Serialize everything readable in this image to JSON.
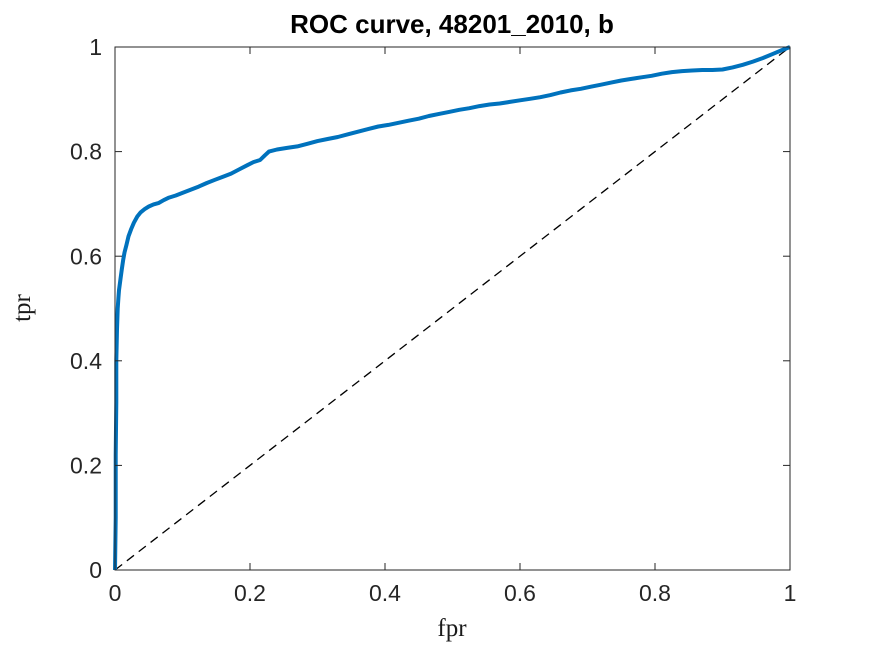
{
  "chart_data": {
    "type": "line",
    "title": "ROC curve, 48201_2010, b",
    "xlabel": "fpr",
    "ylabel": "tpr",
    "xlim": [
      0,
      1
    ],
    "ylim": [
      0,
      1
    ],
    "xticks": [
      0,
      0.2,
      0.4,
      0.6,
      0.8,
      1
    ],
    "yticks": [
      0,
      0.2,
      0.4,
      0.6,
      0.8,
      1
    ],
    "xtick_labels": [
      "0",
      "0.2",
      "0.4",
      "0.6",
      "0.8",
      "1"
    ],
    "ytick_labels": [
      "0",
      "0.2",
      "0.4",
      "0.6",
      "0.8",
      "1"
    ],
    "grid": false,
    "legend": null,
    "axis_color": "#262626",
    "background": "#ffffff",
    "series": [
      {
        "name": "chance-diagonal",
        "type": "reference-line",
        "color": "#000000",
        "width": 1.3,
        "dash": "9,6",
        "points": [
          [
            0,
            0
          ],
          [
            1,
            1
          ]
        ]
      },
      {
        "name": "roc-curve",
        "type": "line",
        "color": "#0072BD",
        "width": 4,
        "dash": null,
        "points": [
          [
            0,
            0
          ],
          [
            0.001,
            0.1
          ],
          [
            0.001,
            0.22
          ],
          [
            0.002,
            0.32
          ],
          [
            0.002,
            0.4
          ],
          [
            0.003,
            0.46
          ],
          [
            0.004,
            0.5
          ],
          [
            0.005,
            0.52
          ],
          [
            0.006,
            0.535
          ],
          [
            0.008,
            0.555
          ],
          [
            0.01,
            0.575
          ],
          [
            0.012,
            0.592
          ],
          [
            0.014,
            0.607
          ],
          [
            0.017,
            0.622
          ],
          [
            0.02,
            0.638
          ],
          [
            0.024,
            0.652
          ],
          [
            0.028,
            0.664
          ],
          [
            0.033,
            0.676
          ],
          [
            0.038,
            0.684
          ],
          [
            0.044,
            0.69
          ],
          [
            0.05,
            0.695
          ],
          [
            0.057,
            0.699
          ],
          [
            0.065,
            0.702
          ],
          [
            0.072,
            0.707
          ],
          [
            0.08,
            0.712
          ],
          [
            0.09,
            0.716
          ],
          [
            0.1,
            0.721
          ],
          [
            0.112,
            0.727
          ],
          [
            0.124,
            0.733
          ],
          [
            0.136,
            0.74
          ],
          [
            0.148,
            0.746
          ],
          [
            0.16,
            0.752
          ],
          [
            0.172,
            0.758
          ],
          [
            0.184,
            0.766
          ],
          [
            0.196,
            0.774
          ],
          [
            0.205,
            0.78
          ],
          [
            0.215,
            0.784
          ],
          [
            0.222,
            0.793
          ],
          [
            0.228,
            0.8
          ],
          [
            0.24,
            0.804
          ],
          [
            0.255,
            0.807
          ],
          [
            0.27,
            0.81
          ],
          [
            0.285,
            0.815
          ],
          [
            0.3,
            0.82
          ],
          [
            0.315,
            0.824
          ],
          [
            0.33,
            0.828
          ],
          [
            0.345,
            0.833
          ],
          [
            0.36,
            0.838
          ],
          [
            0.375,
            0.843
          ],
          [
            0.39,
            0.848
          ],
          [
            0.405,
            0.851
          ],
          [
            0.42,
            0.855
          ],
          [
            0.435,
            0.859
          ],
          [
            0.45,
            0.863
          ],
          [
            0.465,
            0.868
          ],
          [
            0.48,
            0.872
          ],
          [
            0.495,
            0.876
          ],
          [
            0.51,
            0.88
          ],
          [
            0.525,
            0.883
          ],
          [
            0.54,
            0.887
          ],
          [
            0.555,
            0.89
          ],
          [
            0.57,
            0.892
          ],
          [
            0.585,
            0.895
          ],
          [
            0.6,
            0.898
          ],
          [
            0.615,
            0.901
          ],
          [
            0.63,
            0.904
          ],
          [
            0.645,
            0.908
          ],
          [
            0.66,
            0.913
          ],
          [
            0.675,
            0.917
          ],
          [
            0.69,
            0.92
          ],
          [
            0.705,
            0.924
          ],
          [
            0.72,
            0.928
          ],
          [
            0.735,
            0.932
          ],
          [
            0.75,
            0.936
          ],
          [
            0.765,
            0.939
          ],
          [
            0.78,
            0.942
          ],
          [
            0.795,
            0.945
          ],
          [
            0.81,
            0.949
          ],
          [
            0.825,
            0.952
          ],
          [
            0.84,
            0.954
          ],
          [
            0.855,
            0.955
          ],
          [
            0.87,
            0.956
          ],
          [
            0.885,
            0.956
          ],
          [
            0.9,
            0.957
          ],
          [
            0.915,
            0.961
          ],
          [
            0.93,
            0.966
          ],
          [
            0.945,
            0.972
          ],
          [
            0.96,
            0.979
          ],
          [
            0.975,
            0.987
          ],
          [
            0.988,
            0.994
          ],
          [
            1,
            1
          ]
        ]
      }
    ]
  }
}
